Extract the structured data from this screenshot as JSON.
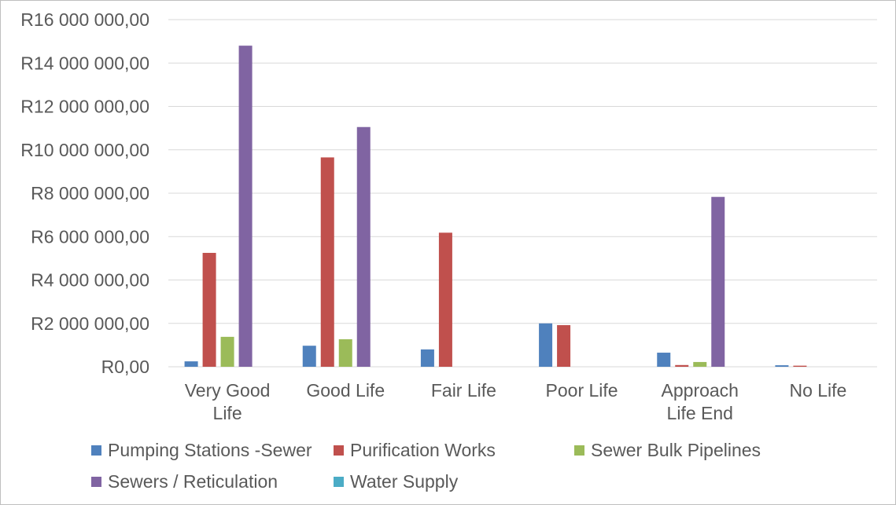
{
  "chart_data": {
    "type": "bar",
    "categories": [
      [
        "Very Good",
        "Life"
      ],
      [
        "Good Life"
      ],
      [
        "Fair Life"
      ],
      [
        "Poor Life"
      ],
      [
        "Approach",
        "Life End"
      ],
      [
        "No Life"
      ]
    ],
    "series": [
      {
        "name": "Pumping Stations -Sewer",
        "color": "#4f81bd",
        "values": [
          250000,
          970000,
          800000,
          2000000,
          650000,
          70000
        ]
      },
      {
        "name": "Purification Works",
        "color": "#c0504d",
        "values": [
          5250000,
          9650000,
          6180000,
          1920000,
          80000,
          50000
        ]
      },
      {
        "name": "Sewer Bulk Pipelines",
        "color": "#9bbb59",
        "values": [
          1380000,
          1270000,
          0,
          0,
          220000,
          0
        ]
      },
      {
        "name": "Sewers / Reticulation",
        "color": "#8064a2",
        "values": [
          14800000,
          11050000,
          0,
          0,
          7830000,
          0
        ]
      },
      {
        "name": "Water Supply",
        "color": "#4bacc6",
        "values": [
          0,
          0,
          0,
          0,
          0,
          0
        ]
      }
    ],
    "y_ticks": [
      "R0,00",
      "R2 000 000,00",
      "R4 000 000,00",
      "R6 000 000,00",
      "R8 000 000,00",
      "R10 000 000,00",
      "R12 000 000,00",
      "R14 000 000,00",
      "R16 000 000,00"
    ],
    "ylim": [
      0,
      16000000
    ],
    "grid": true,
    "legend_position": "bottom",
    "title": "",
    "xlabel": "",
    "ylabel": ""
  }
}
